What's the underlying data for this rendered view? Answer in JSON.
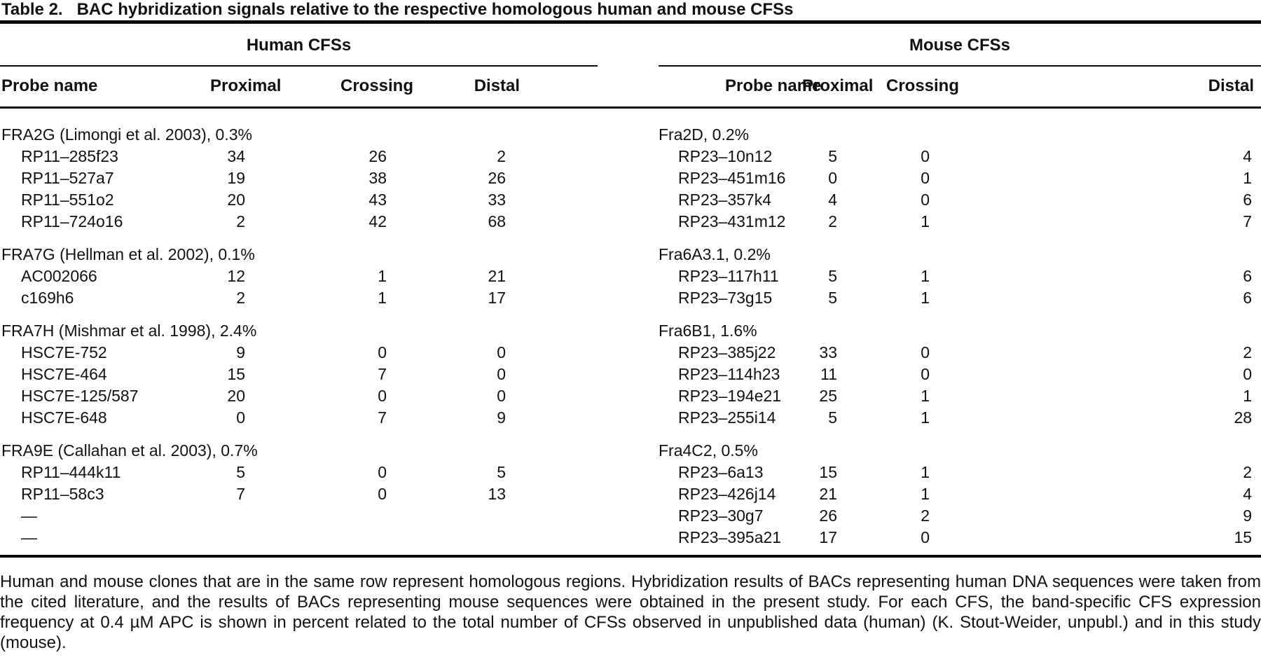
{
  "table": {
    "caption_label": "Table 2.",
    "caption_text": "BAC hybridization signals relative to the respective homologous human and mouse CFSs",
    "group_headers": {
      "human": "Human CFSs",
      "mouse": "Mouse CFSs"
    },
    "column_headers": {
      "probe": "Probe name",
      "proximal": "Proximal",
      "crossing": "Crossing",
      "distal": "Distal"
    },
    "sections": [
      {
        "human": {
          "header": "FRA2G (Limongi et al. 2003), 0.3%",
          "rows": [
            [
              "RP11–285f23",
              "34",
              "26",
              "2"
            ],
            [
              "RP11–527a7",
              "19",
              "38",
              "26"
            ],
            [
              "RP11–551o2",
              "20",
              "43",
              "33"
            ],
            [
              "RP11–724o16",
              "2",
              "42",
              "68"
            ]
          ]
        },
        "mouse": {
          "header": "Fra2D, 0.2%",
          "rows": [
            [
              "RP23–10n12",
              "5",
              "0",
              "4"
            ],
            [
              "RP23–451m16",
              "0",
              "0",
              "1"
            ],
            [
              "RP23–357k4",
              "4",
              "0",
              "6"
            ],
            [
              "RP23–431m12",
              "2",
              "1",
              "7"
            ]
          ]
        }
      },
      {
        "human": {
          "header": "FRA7G (Hellman et al. 2002), 0.1%",
          "rows": [
            [
              "AC002066",
              "12",
              "1",
              "21"
            ],
            [
              "c169h6",
              "2",
              "1",
              "17"
            ]
          ]
        },
        "mouse": {
          "header": "Fra6A3.1, 0.2%",
          "rows": [
            [
              "RP23–117h11",
              "5",
              "1",
              "6"
            ],
            [
              "RP23–73g15",
              "5",
              "1",
              "6"
            ]
          ]
        }
      },
      {
        "human": {
          "header": "FRA7H (Mishmar et al. 1998), 2.4%",
          "rows": [
            [
              "HSC7E-752",
              "9",
              "0",
              "0"
            ],
            [
              "HSC7E-464",
              "15",
              "7",
              "0"
            ],
            [
              "HSC7E-125/587",
              "20",
              "0",
              "0"
            ],
            [
              "HSC7E-648",
              "0",
              "7",
              "9"
            ]
          ]
        },
        "mouse": {
          "header": "Fra6B1, 1.6%",
          "rows": [
            [
              "RP23–385j22",
              "33",
              "0",
              "2"
            ],
            [
              "RP23–114h23",
              "11",
              "0",
              "0"
            ],
            [
              "RP23–194e21",
              "25",
              "1",
              "1"
            ],
            [
              "RP23–255i14",
              "5",
              "1",
              "28"
            ]
          ]
        }
      },
      {
        "human": {
          "header": "FRA9E (Callahan et al. 2003), 0.7%",
          "rows": [
            [
              "RP11–444k11",
              "5",
              "0",
              "5"
            ],
            [
              "RP11–58c3",
              "7",
              "0",
              "13"
            ],
            [
              "—",
              "",
              "",
              ""
            ],
            [
              "—",
              "",
              "",
              ""
            ]
          ]
        },
        "mouse": {
          "header": "Fra4C2, 0.5%",
          "rows": [
            [
              "RP23–6a13",
              "15",
              "1",
              "2"
            ],
            [
              "RP23–426j14",
              "21",
              "1",
              "4"
            ],
            [
              "RP23–30g7",
              "26",
              "2",
              "9"
            ],
            [
              "RP23–395a21",
              "17",
              "0",
              "15"
            ]
          ]
        }
      }
    ],
    "footnote": "Human and mouse clones that are in the same row represent homologous regions. Hybridization results of BACs representing human DNA sequences were taken from the cited literature, and the results of BACs representing mouse sequences were obtained in the present study. For each CFS, the band-specific CFS expression frequency at 0.4 µM APC is shown in percent related to the total number of CFSs observed in unpublished data (human) (K. Stout-Weider, unpubl.) and in this study (mouse)."
  }
}
